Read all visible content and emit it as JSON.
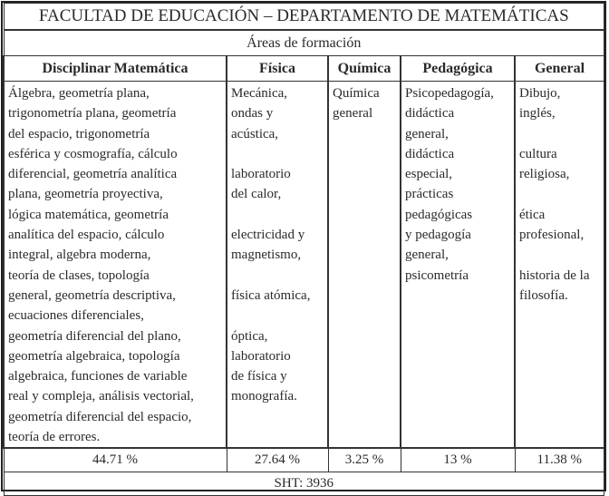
{
  "title": "FACULTAD DE EDUCACIÓN – DEPARTAMENTO DE MATEMÁTICAS",
  "subtitle": "Áreas de formación",
  "columns": [
    {
      "header": "Disciplinar Matemática",
      "content": "Álgebra, geometría plana,\ntrigonometría plana, geometría\ndel espacio, trigonometría\nesférica y cosmografía, cálculo\ndiferencial, geometría analítica\nplana, geometría proyectiva,\nlógica matemática, geometría\nanalítica del espacio, cálculo\nintegral, algebra moderna,\nteoría de clases, topología\ngeneral, geometría descriptiva,\necuaciones diferenciales,\ngeometría diferencial del plano,\ngeometría algebraica, topología\nalgebraica, funciones de variable\nreal y compleja, análisis vectorial,\ngeometría diferencial del espacio,\nteoría de errores.",
      "percent": "44.71 %"
    },
    {
      "header": "Física",
      "content": "Mecánica,\nondas y\nacústica,\n\nlaboratorio\ndel calor,\n\nelectricidad y\nmagnetismo,\n\nfísica atómica,\n\nóptica,\nlaboratorio\nde física y\nmonografía.",
      "percent": "27.64 %"
    },
    {
      "header": "Química",
      "content": "Química\ngeneral",
      "percent": "3.25 %"
    },
    {
      "header": "Pedagógica",
      "content": "Psicopedagogía,\ndidáctica\ngeneral,\ndidáctica\nespecial,\nprácticas\npedagógicas\ny pedagogía\ngeneral,\npsicometría",
      "percent": "13 %"
    },
    {
      "header": "General",
      "content": "Dibujo,\ninglés,\n\ncultura\nreligiosa,\n\nética\nprofesional,\n\nhistoria de la\nfilosofía.",
      "percent": "11.38 %"
    }
  ],
  "total": "SHT: 3936"
}
